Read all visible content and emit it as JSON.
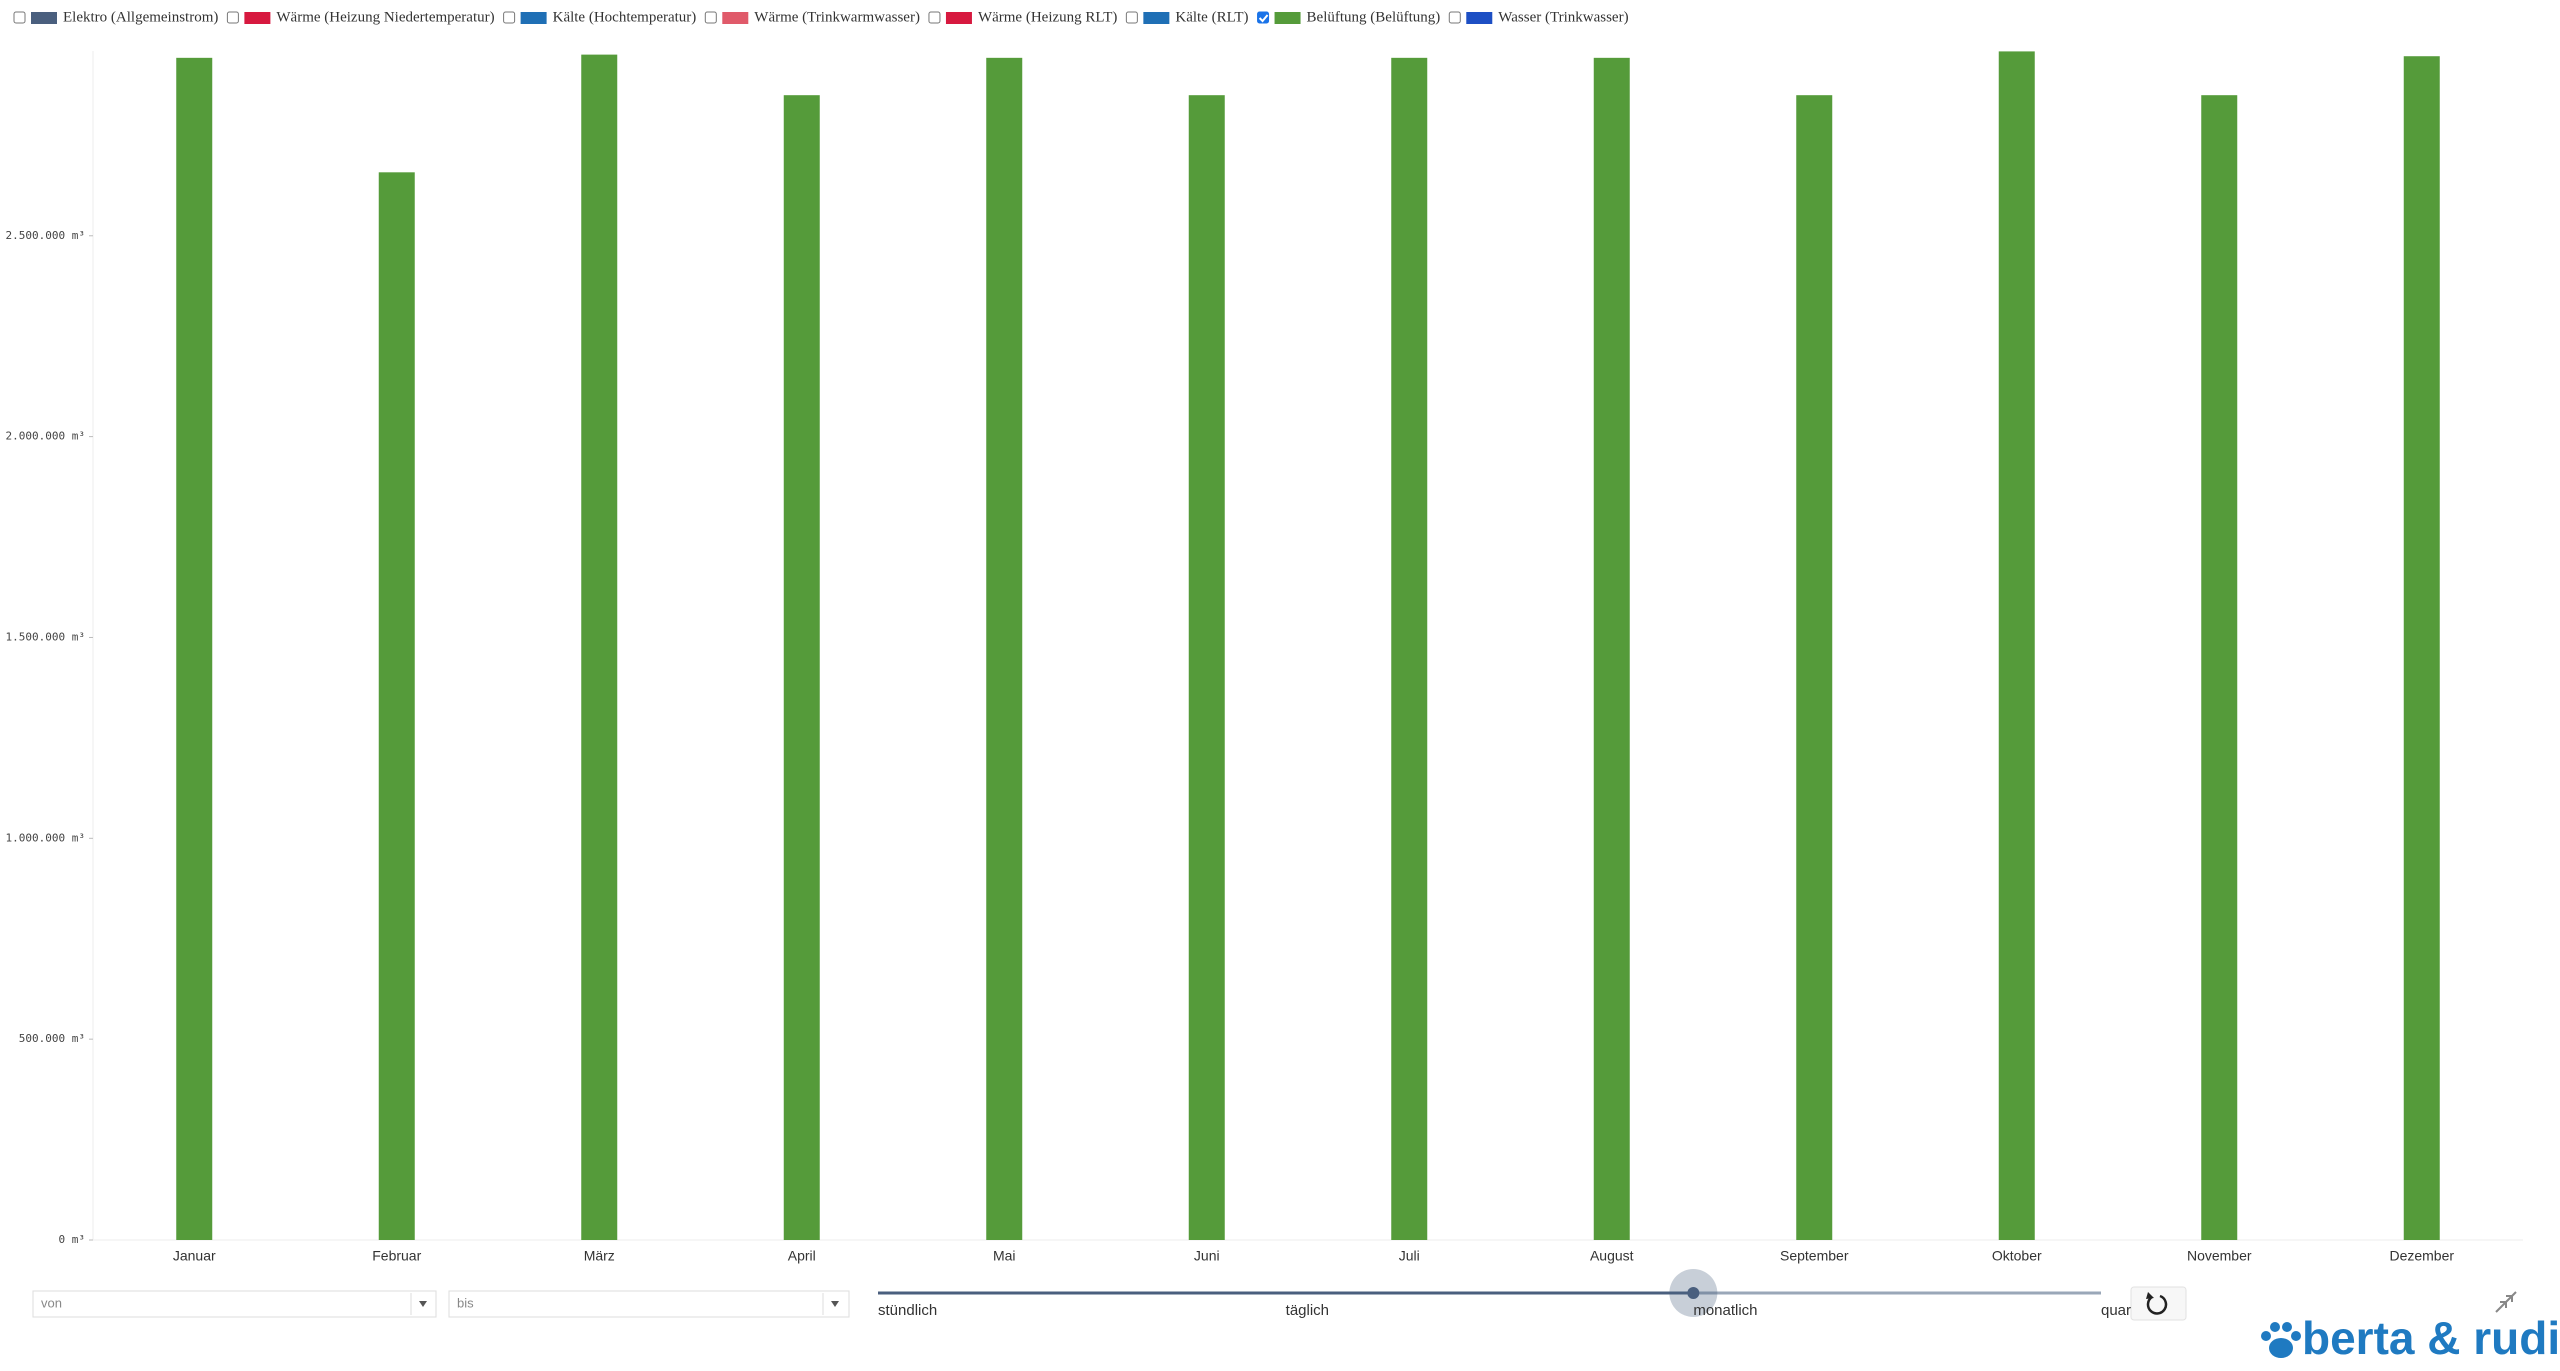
{
  "chart_data": {
    "type": "bar",
    "legend": [
      {
        "name": "Elektro (Allgemeinstrom)",
        "color": "#4a5f7e",
        "checked": false
      },
      {
        "name": "Wärme (Heizung Niedertemperatur)",
        "color": "#d7193f",
        "checked": false
      },
      {
        "name": "Kälte (Hochtemperatur)",
        "color": "#1f6fb5",
        "checked": false
      },
      {
        "name": "Wärme (Trinkwarmwasser)",
        "color": "#e05a6a",
        "checked": false
      },
      {
        "name": "Wärme (Heizung RLT)",
        "color": "#d7193f",
        "checked": false
      },
      {
        "name": "Kälte (RLT)",
        "color": "#1f6fb5",
        "checked": false
      },
      {
        "name": "Belüftung (Belüftung)",
        "color": "#559b3a",
        "checked": true
      },
      {
        "name": "Wasser (Trinkwasser)",
        "color": "#1d4fc4",
        "checked": false
      }
    ],
    "categories": [
      "Januar",
      "Februar",
      "März",
      "April",
      "Mai",
      "Juni",
      "Juli",
      "August",
      "September",
      "Oktober",
      "November",
      "Dezember"
    ],
    "values": [
      2943000,
      2658000,
      2951000,
      2850000,
      2943000,
      2850000,
      2943000,
      2943000,
      2850000,
      2959000,
      2850000,
      2947000
    ],
    "color": "#559b3a",
    "ylim": [
      0,
      2960000
    ],
    "yticks": [
      {
        "value": 0,
        "label": "0 m³"
      },
      {
        "value": 500000,
        "label": "500.000 m³"
      },
      {
        "value": 1000000,
        "label": "1.000.000 m³"
      },
      {
        "value": 1500000,
        "label": "1.500.000 m³"
      },
      {
        "value": 2000000,
        "label": "2.000.000 m³"
      },
      {
        "value": 2500000,
        "label": "2.500.000 m³"
      }
    ],
    "grid": false
  },
  "controls": {
    "from": "von",
    "to": "bis",
    "resolutions": [
      "stündlich",
      "täglich",
      "monatlich",
      "quar"
    ],
    "selected_resolution": 2,
    "logo": "berta & rudi"
  }
}
